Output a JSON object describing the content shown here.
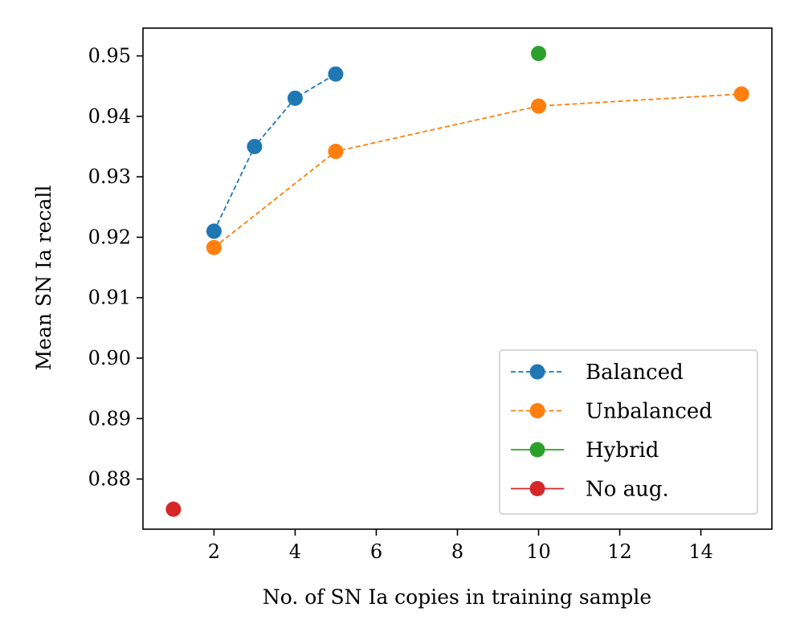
{
  "chart_data": {
    "type": "line",
    "title": "",
    "xlabel": "No. of SN Ia copies in training sample",
    "ylabel": "Mean SN Ia recall",
    "xlim": [
      0.25,
      15.75
    ],
    "ylim": [
      0.8717,
      0.9546
    ],
    "xticks": [
      2,
      4,
      6,
      8,
      10,
      12,
      14
    ],
    "xtick_labels": [
      "2",
      "4",
      "6",
      "8",
      "10",
      "12",
      "14"
    ],
    "yticks": [
      0.88,
      0.89,
      0.9,
      0.91,
      0.92,
      0.93,
      0.94,
      0.95
    ],
    "ytick_labels": [
      "0.88",
      "0.89",
      "0.90",
      "0.91",
      "0.92",
      "0.93",
      "0.94",
      "0.95"
    ],
    "grid": false,
    "legend_position": "lower-right",
    "series": [
      {
        "name": "Balanced",
        "color": "#1f77b4",
        "linestyle": "dashed",
        "marker": "circle",
        "x": [
          2,
          3,
          4,
          5
        ],
        "y": [
          0.921,
          0.935,
          0.943,
          0.947
        ]
      },
      {
        "name": "Unbalanced",
        "color": "#ff7f0e",
        "linestyle": "dashed",
        "marker": "circle",
        "x": [
          2,
          5,
          10,
          15
        ],
        "y": [
          0.9183,
          0.9342,
          0.9417,
          0.9437
        ]
      },
      {
        "name": "Hybrid",
        "color": "#2ca02c",
        "linestyle": "solid",
        "marker": "circle",
        "x": [
          10
        ],
        "y": [
          0.9504
        ]
      },
      {
        "name": "No aug.",
        "color": "#d62728",
        "linestyle": "solid",
        "marker": "circle",
        "x": [
          1
        ],
        "y": [
          0.875
        ]
      }
    ]
  }
}
